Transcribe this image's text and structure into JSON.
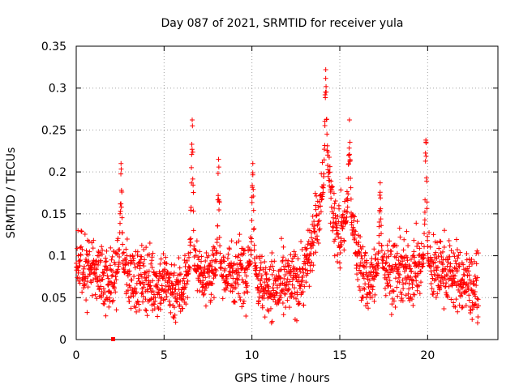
{
  "chart_data": {
    "type": "scatter",
    "title": "Day 087 of 2021, SRMTID for receiver yula",
    "xlabel": "GPS time / hours",
    "ylabel": "SRMTID / TECUs",
    "xlim": [
      0,
      24
    ],
    "ylim": [
      0,
      0.35
    ],
    "x_ticks": [
      0,
      5,
      10,
      15,
      20
    ],
    "x_tick_labels": [
      "0",
      "5",
      "10",
      "15",
      "20"
    ],
    "y_ticks": [
      0,
      0.05,
      0.1,
      0.15,
      0.2,
      0.25,
      0.3,
      0.35
    ],
    "y_tick_labels": [
      "0",
      "0.05",
      "0.1",
      "0.15",
      "0.2",
      "0.25",
      "0.3",
      "0.35"
    ],
    "grid": true,
    "marker": "+",
    "marker_color": "#ff0000",
    "x_range_hours": [
      0,
      22.9
    ],
    "baseline": [
      [
        0,
        0.09
      ],
      [
        0.5,
        0.09
      ],
      [
        1,
        0.085
      ],
      [
        1.5,
        0.075
      ],
      [
        2,
        0.07
      ],
      [
        2.5,
        0.085
      ],
      [
        3,
        0.075
      ],
      [
        3.5,
        0.07
      ],
      [
        4,
        0.075
      ],
      [
        4.5,
        0.065
      ],
      [
        5,
        0.07
      ],
      [
        5.5,
        0.06
      ],
      [
        6,
        0.06
      ],
      [
        6.5,
        0.085
      ],
      [
        7,
        0.08
      ],
      [
        7.5,
        0.08
      ],
      [
        8,
        0.075
      ],
      [
        8.5,
        0.075
      ],
      [
        9,
        0.08
      ],
      [
        9.5,
        0.085
      ],
      [
        10,
        0.09
      ],
      [
        10.5,
        0.065
      ],
      [
        11,
        0.065
      ],
      [
        11.5,
        0.06
      ],
      [
        12,
        0.065
      ],
      [
        12.5,
        0.07
      ],
      [
        13,
        0.08
      ],
      [
        13.5,
        0.12
      ],
      [
        14,
        0.17
      ],
      [
        14.3,
        0.2
      ],
      [
        14.7,
        0.14
      ],
      [
        15,
        0.12
      ],
      [
        15.5,
        0.15
      ],
      [
        16,
        0.1
      ],
      [
        16.5,
        0.07
      ],
      [
        17,
        0.075
      ],
      [
        17.5,
        0.085
      ],
      [
        18,
        0.08
      ],
      [
        18.5,
        0.08
      ],
      [
        19,
        0.08
      ],
      [
        19.5,
        0.085
      ],
      [
        20,
        0.09
      ],
      [
        20.5,
        0.08
      ],
      [
        21,
        0.085
      ],
      [
        21.5,
        0.075
      ],
      [
        22,
        0.07
      ],
      [
        22.9,
        0.06
      ]
    ],
    "spikes": [
      {
        "hour": 2.55,
        "peak": 0.21
      },
      {
        "hour": 6.6,
        "peak": 0.262
      },
      {
        "hour": 8.1,
        "peak": 0.215
      },
      {
        "hour": 10.05,
        "peak": 0.21
      },
      {
        "hour": 14.2,
        "peak": 0.322
      },
      {
        "hour": 15.55,
        "peak": 0.262
      },
      {
        "hour": 17.3,
        "peak": 0.187
      },
      {
        "hour": 19.9,
        "peak": 0.238
      }
    ],
    "outlier": {
      "x": 2.1,
      "y": 0.0
    }
  }
}
